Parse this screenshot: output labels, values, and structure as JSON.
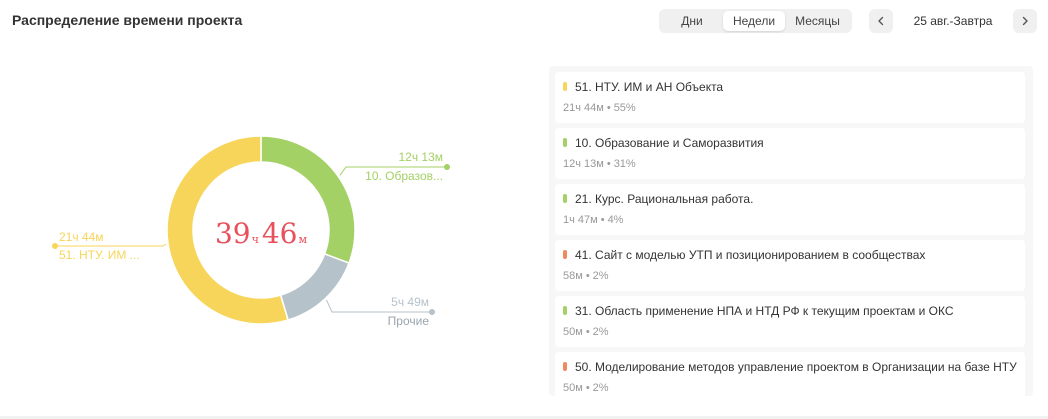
{
  "header": {
    "title": "Распределение времени проекта",
    "periods": [
      "Дни",
      "Недели",
      "Месяцы"
    ],
    "active_period": "Недели",
    "date_range": "25 авг.-Завтра"
  },
  "icons": {
    "prev": "chevron-left-icon",
    "next": "chevron-right-icon"
  },
  "colors": {
    "yellow": "#f7d55a",
    "green": "#a3d165",
    "gray": "#b6c2c9",
    "orange": "#f08a5d",
    "total": "#e8505b"
  },
  "total": {
    "hours": "39",
    "hours_unit": "ч",
    "minutes": "46",
    "minutes_unit": "м"
  },
  "chart_data": {
    "type": "pie",
    "slices": [
      {
        "label": "10. Образов...",
        "value": "12ч 13м",
        "minutes": 733,
        "color": "#a3d165"
      },
      {
        "label": "Прочие",
        "value": "5ч 49м",
        "minutes": 349,
        "color": "#b6c2c9"
      },
      {
        "label": "51. НТУ. ИМ ...",
        "value": "21ч 44м",
        "minutes": 1304,
        "color": "#f7d55a"
      }
    ]
  },
  "legend": [
    {
      "name": "51. НТУ. ИМ и АН Объекта",
      "time": "21ч 44м",
      "percent": "55%",
      "color": "#f7d55a"
    },
    {
      "name": "10. Образование и Саморазвития",
      "time": "12ч 13м",
      "percent": "31%",
      "color": "#a3d165"
    },
    {
      "name": "21. Курс. Рациональная работа.",
      "time": "1ч 47м",
      "percent": "4%",
      "color": "#a3d165"
    },
    {
      "name": "41. Сайт с моделью УТП и позиционированием в сообществах",
      "time": "58м",
      "percent": "2%",
      "color": "#f08a5d"
    },
    {
      "name": "31. Область применение НПА и НТД РФ к текущим проектам и ОКС",
      "time": "50м",
      "percent": "2%",
      "color": "#a3d165"
    },
    {
      "name": "50. Моделирование методов управление проектом в Организации на базе НТУ",
      "time": "50м",
      "percent": "2%",
      "color": "#f08a5d"
    }
  ]
}
